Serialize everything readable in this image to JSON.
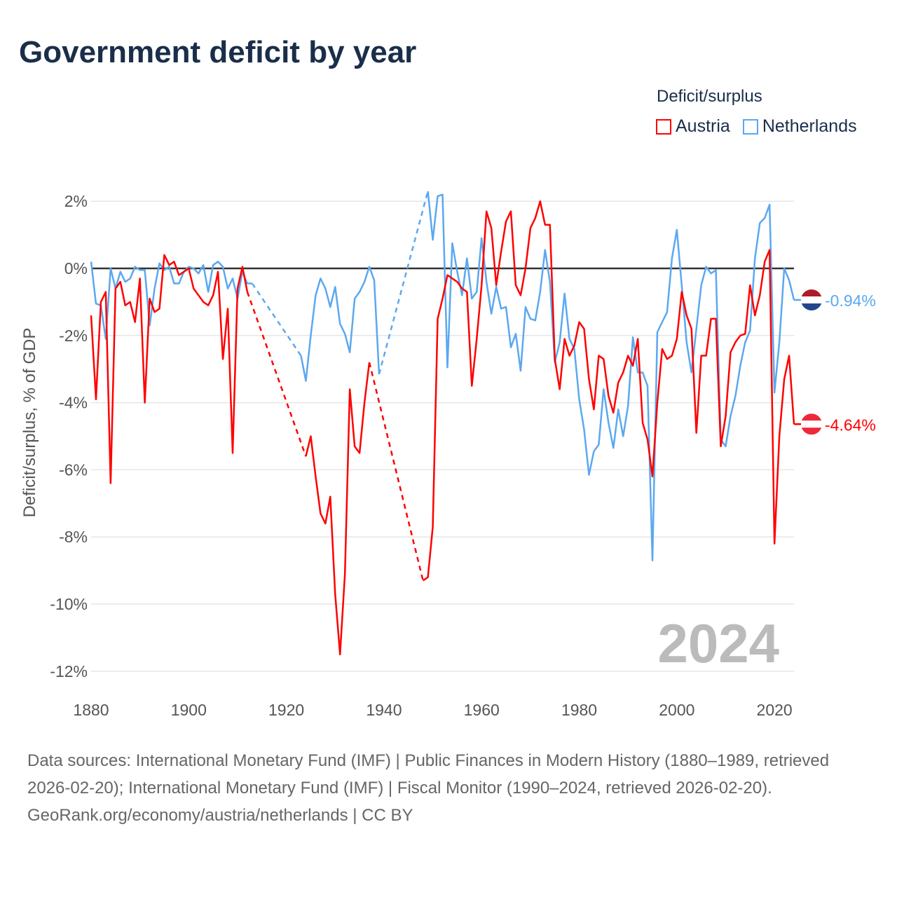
{
  "title": "Government deficit by year",
  "legend": {
    "title": "Deficit/surplus",
    "items": [
      {
        "name": "Austria",
        "color": "#ff0000"
      },
      {
        "name": "Netherlands",
        "color": "#5ba8f0"
      }
    ]
  },
  "year_watermark": "2024",
  "end_labels": {
    "netherlands": "-0.94%",
    "austria": "-4.64%"
  },
  "footer": {
    "sources": "Data sources: International Monetary Fund (IMF) | Public Finances in Modern History (1880–1989, retrieved 2026-02-20); International Monetary Fund (IMF) | Fiscal Monitor (1990–2024, retrieved 2026-02-20).",
    "credit": "GeoRank.org/economy/austria/netherlands | CC BY"
  },
  "chart_data": {
    "type": "line",
    "title": "Government deficit by year",
    "xlabel": "",
    "ylabel": "Deficit/surplus, % of GDP",
    "xlim": [
      1880,
      2024
    ],
    "ylim": [
      -12,
      2
    ],
    "x_ticks": [
      "1880",
      "1900",
      "1920",
      "1940",
      "1960",
      "1980",
      "2000",
      "2020"
    ],
    "y_ticks": [
      "2%",
      "0%",
      "-2%",
      "-4%",
      "-6%",
      "-8%",
      "-10%",
      "-12%"
    ],
    "y_tick_values": [
      2,
      0,
      -2,
      -4,
      -6,
      -8,
      -10,
      -12
    ],
    "start_year": 1880,
    "series": [
      {
        "name": "Austria",
        "color": "#ff0000",
        "values": [
          -1.4,
          -3.9,
          -1.0,
          -0.7,
          -6.4,
          -0.6,
          -0.4,
          -1.1,
          -1.0,
          -1.6,
          -0.3,
          -4.0,
          -0.9,
          -1.3,
          -1.2,
          0.4,
          0.1,
          0.2,
          -0.2,
          -0.1,
          0.0,
          -0.6,
          -0.8,
          -1.0,
          -1.1,
          -0.8,
          -0.1,
          -2.7,
          -1.2,
          -5.5,
          -0.6,
          0.05,
          -0.7,
          null,
          null,
          null,
          null,
          null,
          null,
          null,
          null,
          null,
          null,
          null,
          -5.6,
          -5.0,
          -6.2,
          -7.3,
          -7.6,
          -6.8,
          -9.7,
          -11.5,
          -9.1,
          -3.6,
          -5.3,
          -5.5,
          -4.0,
          -2.8,
          null,
          null,
          null,
          null,
          null,
          null,
          null,
          null,
          null,
          null,
          -9.3,
          -9.2,
          -7.7,
          -1.5,
          -0.9,
          -0.2,
          -0.3,
          -0.4,
          -0.6,
          -0.7,
          -3.5,
          -2.1,
          -0.5,
          1.7,
          1.2,
          -0.5,
          0.5,
          1.4,
          1.7,
          -0.5,
          -0.8,
          0.0,
          1.2,
          1.5,
          2.0,
          1.3,
          1.3,
          -2.7,
          -3.6,
          -2.1,
          -2.6,
          -2.3,
          -1.6,
          -1.8,
          -3.3,
          -4.2,
          -2.6,
          -2.7,
          -3.8,
          -4.3,
          -3.4,
          -3.1,
          -2.6,
          -2.9,
          -2.1,
          -4.6,
          -5.1,
          -6.2,
          -4.0,
          -2.4,
          -2.7,
          -2.6,
          -2.1,
          -0.7,
          -1.4,
          -1.8,
          -4.9,
          -2.6,
          -2.6,
          -1.5,
          -1.5,
          -5.3,
          -4.4,
          -2.5,
          -2.2,
          -2.0,
          -1.95,
          -0.5,
          -1.4,
          -0.8,
          0.2,
          0.55,
          -8.2,
          -5.0,
          -3.3,
          -2.6,
          -4.64
        ]
      },
      {
        "name": "Netherlands",
        "color": "#5ba8f0",
        "values": [
          0.2,
          -1.05,
          -1.1,
          -2.1,
          0.0,
          -0.6,
          -0.1,
          -0.4,
          -0.3,
          0.05,
          -0.05,
          -0.05,
          -1.7,
          -0.6,
          0.15,
          -0.05,
          0.05,
          -0.45,
          -0.45,
          -0.1,
          0.05,
          0.0,
          -0.15,
          0.1,
          -0.7,
          0.1,
          0.2,
          0.05,
          -0.6,
          -0.3,
          -0.9,
          -0.1,
          -0.45,
          -0.45,
          null,
          null,
          null,
          null,
          null,
          null,
          null,
          null,
          null,
          -2.6,
          -3.35,
          -2.0,
          -0.8,
          -0.3,
          -0.6,
          -1.15,
          -0.55,
          -1.65,
          -1.95,
          -2.5,
          -0.9,
          -0.7,
          -0.4,
          0.05,
          -0.35,
          -3.15,
          null,
          null,
          null,
          null,
          null,
          null,
          null,
          null,
          null,
          2.3,
          0.85,
          2.15,
          2.2,
          -2.95,
          0.75,
          -0.1,
          -0.8,
          0.3,
          -0.9,
          -0.7,
          0.9,
          -0.4,
          -1.35,
          -0.55,
          -1.2,
          -1.15,
          -2.35,
          -1.95,
          -3.05,
          -1.15,
          -1.5,
          -1.55,
          -0.7,
          0.55,
          -0.4,
          -2.8,
          -2.2,
          -0.75,
          -2.1,
          -2.4,
          -3.9,
          -4.8,
          -6.15,
          -5.45,
          -5.25,
          -3.6,
          -4.6,
          -5.35,
          -4.2,
          -5.0,
          -4.1,
          -2.05,
          -3.1,
          -3.1,
          -3.5,
          -8.7,
          -1.9,
          -1.6,
          -1.3,
          0.3,
          1.15,
          -0.5,
          -2.2,
          -3.1,
          -1.8,
          -0.5,
          0.05,
          -0.15,
          -0.05,
          -5.1,
          -5.3,
          -4.4,
          -3.8,
          -2.9,
          -2.2,
          -1.85,
          0.3,
          1.35,
          1.5,
          1.9,
          -3.7,
          -2.2,
          0.0,
          -0.35,
          -0.94
        ]
      }
    ]
  }
}
